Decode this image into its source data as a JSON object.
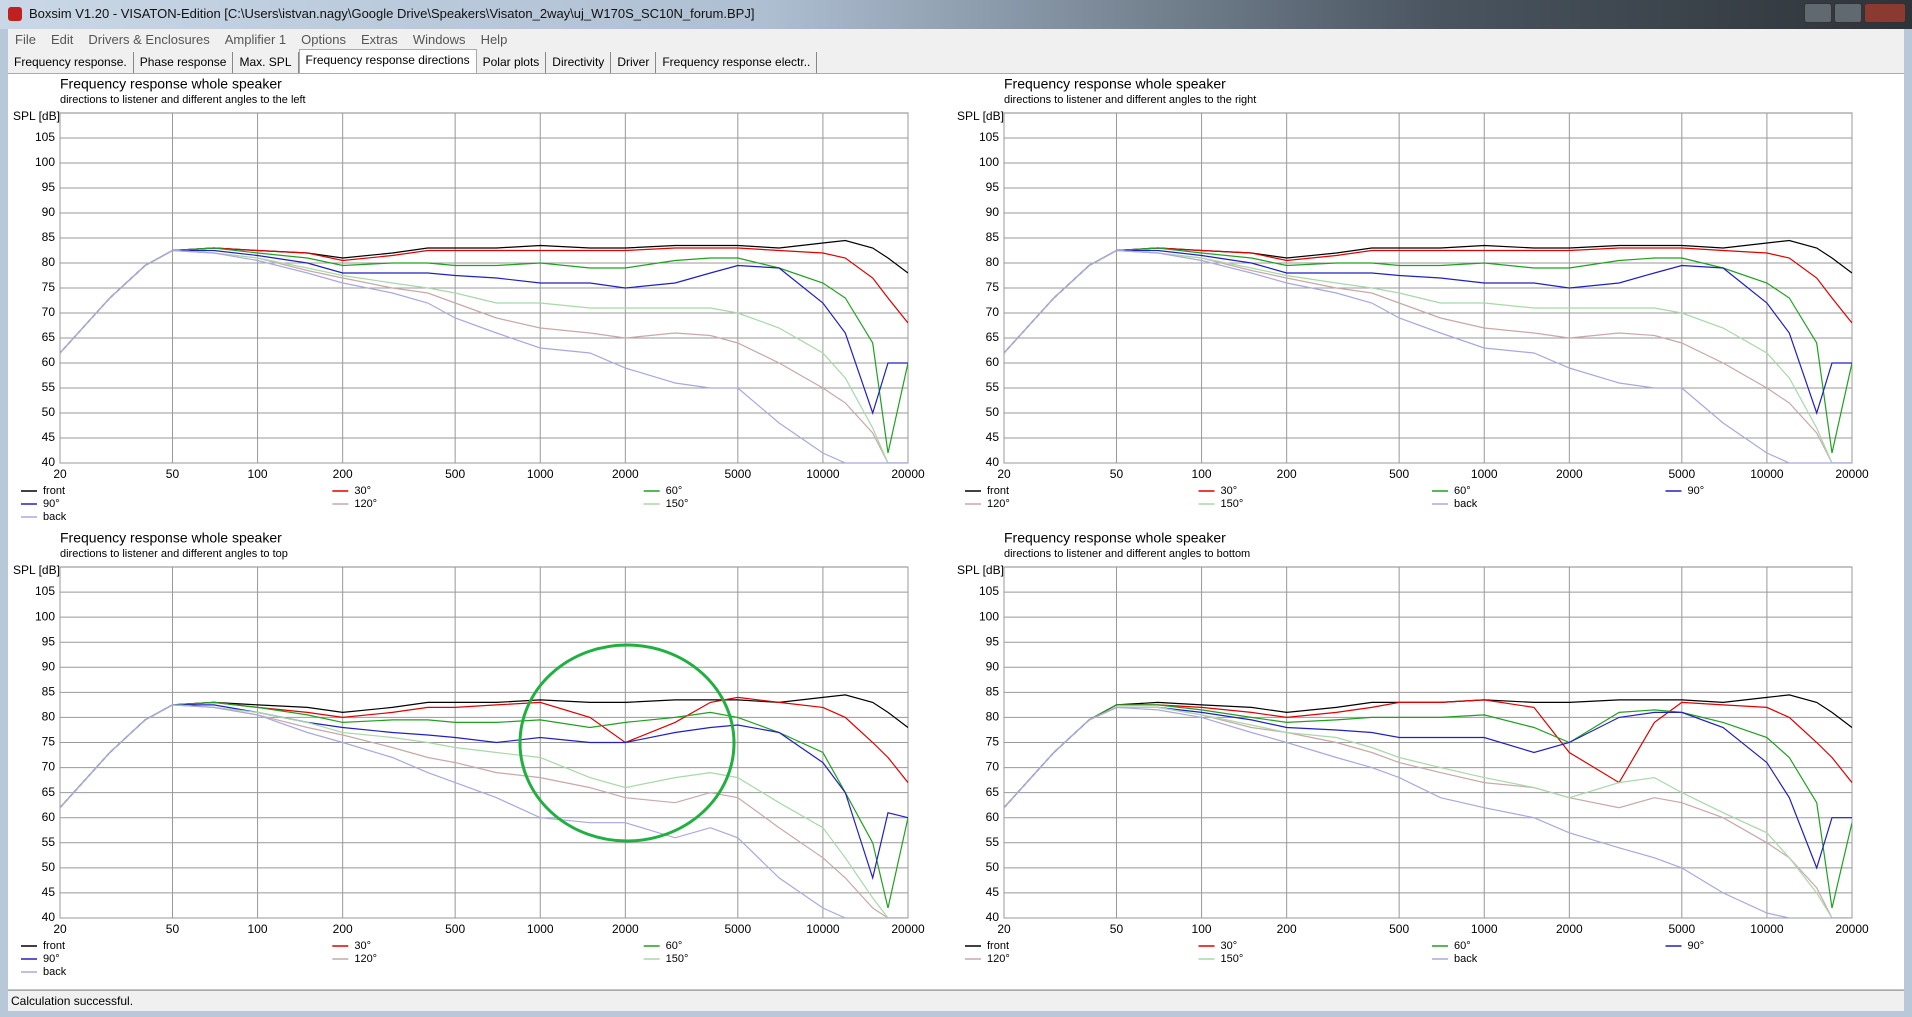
{
  "window": {
    "title": "Boxsim V1.20 - VISATON-Edition [C:\\Users\\istvan.nagy\\Google Drive\\Speakers\\Visaton_2way\\uj_W170S_SC10N_forum.BPJ]",
    "menu": [
      "File",
      "Edit",
      "Drivers & Enclosures",
      "Amplifier 1",
      "Options",
      "Extras",
      "Windows",
      "Help"
    ],
    "tabs": [
      "Frequency response.",
      "Phase response",
      "Max. SPL",
      "Frequency response directions",
      "Polar plots",
      "Directivity",
      "Driver",
      "Frequency response electr.."
    ],
    "active_tab": 3,
    "status": "Calculation successful."
  },
  "chart_data": [
    {
      "type": "line",
      "title": "Frequency response whole speaker",
      "subtitle": "directions to listener and different angles to the left",
      "y_label": "SPL [dB]",
      "log_x": true,
      "grid": true,
      "legend_columns": 3,
      "xlim": [
        20,
        20000
      ],
      "ylim": [
        40,
        110
      ],
      "xticks": [
        20,
        50,
        100,
        200,
        500,
        1000,
        2000,
        5000,
        10000,
        20000
      ],
      "yticks": [
        40,
        45,
        50,
        55,
        60,
        65,
        70,
        75,
        80,
        85,
        90,
        95,
        100,
        105
      ],
      "x": [
        20,
        30,
        40,
        50,
        70,
        100,
        150,
        200,
        300,
        400,
        500,
        700,
        1000,
        1500,
        2000,
        3000,
        4000,
        5000,
        7000,
        10000,
        12000,
        15000,
        17000,
        20000
      ],
      "series": [
        {
          "name": "front",
          "color": "#000000",
          "values": [
            62,
            73,
            79.5,
            82.5,
            83,
            82.5,
            82,
            81,
            82,
            83,
            83,
            83,
            83.5,
            83,
            83,
            83.5,
            83.5,
            83.5,
            83,
            84,
            84.5,
            83,
            81,
            78
          ]
        },
        {
          "name": "30°",
          "color": "#e00000",
          "values": [
            62,
            73,
            79.5,
            82.5,
            83,
            82.5,
            82,
            80.5,
            81.5,
            82.5,
            82.5,
            82.5,
            82.5,
            82.5,
            82.5,
            83,
            83,
            83,
            82.5,
            82,
            81,
            77,
            73,
            68
          ]
        },
        {
          "name": "60°",
          "color": "#20a020",
          "values": [
            62,
            73,
            79.5,
            82.5,
            83,
            82,
            81,
            79.5,
            80,
            80,
            79.5,
            79.5,
            80,
            79,
            79,
            80.5,
            81,
            81,
            79,
            76,
            73,
            64,
            42,
            60
          ]
        },
        {
          "name": "90°",
          "color": "#2020c0",
          "values": [
            62,
            73,
            79.5,
            82.5,
            82.5,
            81.5,
            80,
            78,
            78,
            78,
            77.5,
            77,
            76,
            76,
            75,
            76,
            78,
            79.5,
            79,
            72,
            66,
            50,
            60,
            60
          ]
        },
        {
          "name": "120°",
          "color": "#c8a8a8",
          "values": [
            62,
            73,
            79.5,
            82.5,
            82,
            81,
            78.5,
            77,
            75,
            74,
            72,
            69,
            67,
            66,
            65,
            66,
            65.5,
            64,
            60,
            55,
            52,
            46,
            40,
            40
          ]
        },
        {
          "name": "150°",
          "color": "#a8d8a8",
          "values": [
            62,
            73,
            79.5,
            82.5,
            82,
            81,
            79,
            77.5,
            76,
            75,
            74,
            72,
            72,
            71,
            71,
            71,
            71,
            70,
            67,
            62,
            57,
            47,
            40,
            40
          ]
        },
        {
          "name": "back",
          "color": "#a8a8e0",
          "values": [
            62,
            73,
            79.5,
            82.5,
            82,
            80.5,
            78,
            76,
            74,
            72,
            69,
            66,
            63,
            62,
            59,
            56,
            55,
            55,
            48,
            42,
            40,
            40,
            40,
            40
          ]
        }
      ]
    },
    {
      "type": "line",
      "title": "Frequency response whole speaker",
      "subtitle": "directions to listener and different angles to the right",
      "y_label": "SPL [dB]",
      "log_x": true,
      "grid": true,
      "legend_columns": 4,
      "xlim": [
        20,
        20000
      ],
      "ylim": [
        40,
        110
      ],
      "xticks": [
        20,
        50,
        100,
        200,
        500,
        1000,
        2000,
        5000,
        10000,
        20000
      ],
      "yticks": [
        40,
        45,
        50,
        55,
        60,
        65,
        70,
        75,
        80,
        85,
        90,
        95,
        100,
        105
      ],
      "x": [
        20,
        30,
        40,
        50,
        70,
        100,
        150,
        200,
        300,
        400,
        500,
        700,
        1000,
        1500,
        2000,
        3000,
        4000,
        5000,
        7000,
        10000,
        12000,
        15000,
        17000,
        20000
      ],
      "series": [
        {
          "name": "front",
          "color": "#000000",
          "values": [
            62,
            73,
            79.5,
            82.5,
            83,
            82.5,
            82,
            81,
            82,
            83,
            83,
            83,
            83.5,
            83,
            83,
            83.5,
            83.5,
            83.5,
            83,
            84,
            84.5,
            83,
            81,
            78
          ]
        },
        {
          "name": "30°",
          "color": "#e00000",
          "values": [
            62,
            73,
            79.5,
            82.5,
            83,
            82.5,
            82,
            80.5,
            81.5,
            82.5,
            82.5,
            82.5,
            82.5,
            82.5,
            82.5,
            83,
            83,
            83,
            82.5,
            82,
            81,
            77,
            73,
            68
          ]
        },
        {
          "name": "60°",
          "color": "#20a020",
          "values": [
            62,
            73,
            79.5,
            82.5,
            83,
            82,
            81,
            79.5,
            80,
            80,
            79.5,
            79.5,
            80,
            79,
            79,
            80.5,
            81,
            81,
            79,
            76,
            73,
            64,
            42,
            60
          ]
        },
        {
          "name": "90°",
          "color": "#2020c0",
          "values": [
            62,
            73,
            79.5,
            82.5,
            82.5,
            81.5,
            80,
            78,
            78,
            78,
            77.5,
            77,
            76,
            76,
            75,
            76,
            78,
            79.5,
            79,
            72,
            66,
            50,
            60,
            60
          ]
        },
        {
          "name": "120°",
          "color": "#c8a8a8",
          "values": [
            62,
            73,
            79.5,
            82.5,
            82,
            81,
            78.5,
            77,
            75,
            74,
            72,
            69,
            67,
            66,
            65,
            66,
            65.5,
            64,
            60,
            55,
            52,
            46,
            40,
            40
          ]
        },
        {
          "name": "150°",
          "color": "#a8d8a8",
          "values": [
            62,
            73,
            79.5,
            82.5,
            82,
            81,
            79,
            77.5,
            76,
            75,
            74,
            72,
            72,
            71,
            71,
            71,
            71,
            70,
            67,
            62,
            57,
            47,
            40,
            40
          ]
        },
        {
          "name": "back",
          "color": "#a8a8e0",
          "values": [
            62,
            73,
            79.5,
            82.5,
            82,
            80.5,
            78,
            76,
            74,
            72,
            69,
            66,
            63,
            62,
            59,
            56,
            55,
            55,
            48,
            42,
            40,
            40,
            40,
            40
          ]
        }
      ]
    },
    {
      "type": "line",
      "title": "Frequency response whole speaker",
      "subtitle": "directions to listener and different angles to top",
      "y_label": "SPL [dB]",
      "log_x": true,
      "grid": true,
      "legend_columns": 3,
      "xlim": [
        20,
        20000
      ],
      "ylim": [
        40,
        110
      ],
      "xticks": [
        20,
        50,
        100,
        200,
        500,
        1000,
        2000,
        5000,
        10000,
        20000
      ],
      "yticks": [
        40,
        45,
        50,
        55,
        60,
        65,
        70,
        75,
        80,
        85,
        90,
        95,
        100,
        105
      ],
      "x": [
        20,
        30,
        40,
        50,
        70,
        100,
        150,
        200,
        300,
        400,
        500,
        700,
        1000,
        1500,
        2000,
        3000,
        4000,
        5000,
        7000,
        10000,
        12000,
        15000,
        17000,
        20000
      ],
      "series": [
        {
          "name": "front",
          "color": "#000000",
          "values": [
            62,
            73,
            79.5,
            82.5,
            83,
            82.5,
            82,
            81,
            82,
            83,
            83,
            83,
            83.5,
            83,
            83,
            83.5,
            83.5,
            83.5,
            83,
            84,
            84.5,
            83,
            81,
            78
          ]
        },
        {
          "name": "30°",
          "color": "#e00000",
          "values": [
            62,
            73,
            79.5,
            82.5,
            83,
            82,
            81,
            80,
            81,
            82,
            82,
            82.5,
            83,
            80,
            75,
            79,
            83,
            84,
            83,
            82,
            80,
            75,
            72,
            67
          ]
        },
        {
          "name": "60°",
          "color": "#20a020",
          "values": [
            62,
            73,
            79.5,
            82.5,
            83,
            82,
            80.5,
            79,
            79.5,
            79.5,
            79,
            79,
            79.5,
            78,
            79,
            80,
            81,
            80,
            77,
            73,
            65,
            55,
            42,
            60
          ]
        },
        {
          "name": "90°",
          "color": "#2020c0",
          "values": [
            62,
            73,
            79.5,
            82.5,
            82.5,
            81,
            79,
            78,
            77,
            76.5,
            76,
            75,
            76,
            75,
            75,
            77,
            78,
            78.5,
            77,
            71,
            65,
            48,
            61,
            60
          ]
        },
        {
          "name": "120°",
          "color": "#c8a8a8",
          "values": [
            62,
            73,
            79.5,
            82.5,
            82,
            80.5,
            78,
            76.5,
            74,
            72,
            71,
            69,
            68,
            66,
            64,
            63,
            65,
            64,
            58,
            52,
            48,
            42,
            40,
            40
          ]
        },
        {
          "name": "150°",
          "color": "#a8d8a8",
          "values": [
            62,
            73,
            79.5,
            82.5,
            82,
            81,
            79,
            77,
            76,
            75,
            74,
            73,
            72,
            68,
            66,
            68,
            69,
            68,
            63,
            58,
            52,
            44,
            40,
            40
          ]
        },
        {
          "name": "back",
          "color": "#a8a8e0",
          "values": [
            62,
            73,
            79.5,
            82.5,
            82,
            80.5,
            77,
            75,
            72,
            69,
            67,
            64,
            60,
            59,
            59,
            56,
            58,
            56,
            48,
            42,
            40,
            40,
            40,
            40
          ]
        }
      ]
    },
    {
      "type": "line",
      "title": "Frequency response whole speaker",
      "subtitle": "directions to listener and different angles to bottom",
      "y_label": "SPL [dB]",
      "log_x": true,
      "grid": true,
      "legend_columns": 4,
      "xlim": [
        20,
        20000
      ],
      "ylim": [
        40,
        110
      ],
      "xticks": [
        20,
        50,
        100,
        200,
        500,
        1000,
        2000,
        5000,
        10000,
        20000
      ],
      "yticks": [
        40,
        45,
        50,
        55,
        60,
        65,
        70,
        75,
        80,
        85,
        90,
        95,
        100,
        105
      ],
      "x": [
        20,
        30,
        40,
        50,
        70,
        100,
        150,
        200,
        300,
        400,
        500,
        700,
        1000,
        1500,
        2000,
        3000,
        4000,
        5000,
        7000,
        10000,
        12000,
        15000,
        17000,
        20000
      ],
      "series": [
        {
          "name": "front",
          "color": "#000000",
          "values": [
            62,
            73,
            79.5,
            82.5,
            83,
            82.5,
            82,
            81,
            82,
            83,
            83,
            83,
            83.5,
            83,
            83,
            83.5,
            83.5,
            83.5,
            83,
            84,
            84.5,
            83,
            81,
            78
          ]
        },
        {
          "name": "30°",
          "color": "#e00000",
          "values": [
            62,
            73,
            79.5,
            82.5,
            82.5,
            82,
            81,
            80,
            81,
            82,
            83,
            83,
            83.5,
            82,
            73,
            67,
            79,
            83,
            82.5,
            82,
            80,
            75,
            72,
            67
          ]
        },
        {
          "name": "60°",
          "color": "#20a020",
          "values": [
            62,
            73,
            79.5,
            82.5,
            82.5,
            81.5,
            80,
            79,
            79.5,
            80,
            80,
            80,
            80.5,
            78,
            75,
            81,
            81.5,
            81,
            79,
            76,
            72,
            63,
            42,
            59
          ]
        },
        {
          "name": "90°",
          "color": "#2020c0",
          "values": [
            62,
            73,
            79.5,
            82,
            82,
            81,
            79.5,
            78,
            77.5,
            77,
            76,
            76,
            76,
            73,
            75,
            80,
            81,
            81,
            78,
            71,
            64,
            50,
            60,
            60
          ]
        },
        {
          "name": "120°",
          "color": "#c8a8a8",
          "values": [
            62,
            73,
            79.5,
            82,
            82,
            80.5,
            78,
            77,
            75,
            73,
            71,
            69,
            67,
            66,
            64,
            62,
            64,
            63,
            60,
            55,
            52,
            46,
            40,
            40
          ]
        },
        {
          "name": "150°",
          "color": "#a8d8a8",
          "values": [
            62,
            73,
            79.5,
            82,
            82,
            80.5,
            78.5,
            77,
            76,
            74,
            72,
            70,
            68,
            66,
            64,
            67,
            68,
            65,
            61,
            57,
            52,
            45,
            40,
            40
          ]
        },
        {
          "name": "back",
          "color": "#a8a8e0",
          "values": [
            62,
            73,
            79.5,
            82,
            81.5,
            80,
            77,
            75,
            72,
            70,
            68,
            64,
            62,
            60,
            57,
            54,
            52,
            50,
            45,
            41,
            40,
            40,
            40,
            40
          ]
        }
      ]
    }
  ]
}
